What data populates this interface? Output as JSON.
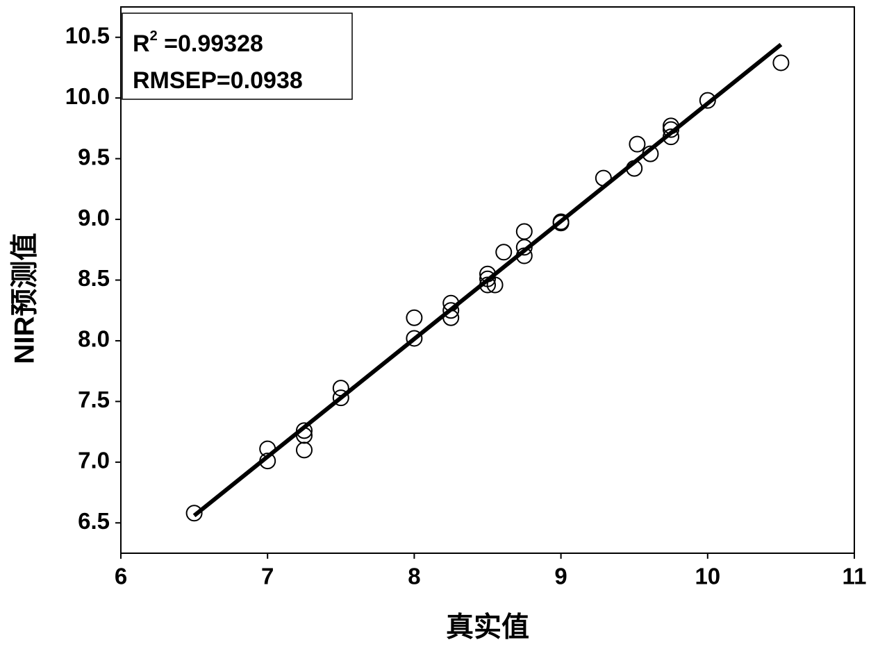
{
  "chart_data": {
    "type": "scatter",
    "x_label": "真实值",
    "y_label": "NIR预测值",
    "annotations": {
      "r2_symbol": "R",
      "r2_superscript": "2",
      "r2_text": " =0.99328",
      "rmsep_text": "RMSEP=0.0938"
    },
    "x": [
      6.5,
      7.0,
      7.0,
      7.25,
      7.25,
      7.25,
      7.5,
      7.5,
      8.0,
      8.0,
      8.25,
      8.25,
      8.25,
      8.5,
      8.5,
      8.5,
      8.55,
      8.61,
      8.75,
      8.75,
      8.75,
      9.0,
      9.0,
      9.29,
      9.5,
      9.52,
      9.61,
      9.75,
      9.75,
      9.75,
      10.0,
      10.5
    ],
    "values": [
      6.58,
      7.11,
      7.01,
      7.26,
      7.22,
      7.1,
      7.61,
      7.53,
      8.19,
      8.02,
      8.31,
      8.25,
      8.19,
      8.55,
      8.51,
      8.46,
      8.46,
      8.73,
      8.9,
      8.77,
      8.7,
      8.98,
      8.97,
      9.34,
      9.42,
      9.62,
      9.54,
      9.77,
      9.74,
      9.68,
      9.98,
      10.29
    ],
    "fit_line": {
      "x": [
        6.5,
        10.5
      ],
      "y": [
        6.56,
        10.44
      ]
    },
    "color": "#000000",
    "xlim": [
      6,
      11
    ],
    "ylim": [
      6.25,
      10.75
    ],
    "xticks": [
      6,
      7,
      8,
      9,
      10,
      11
    ],
    "yticks": [
      6.5,
      {
        "value": 7,
        "label": "7.0"
      },
      7.5,
      {
        "value": 8,
        "label": "8.0"
      },
      8.5,
      {
        "value": 9,
        "label": "9.0"
      },
      9.5,
      {
        "value": 10,
        "label": "10.0"
      },
      10.5
    ],
    "grid": false
  }
}
